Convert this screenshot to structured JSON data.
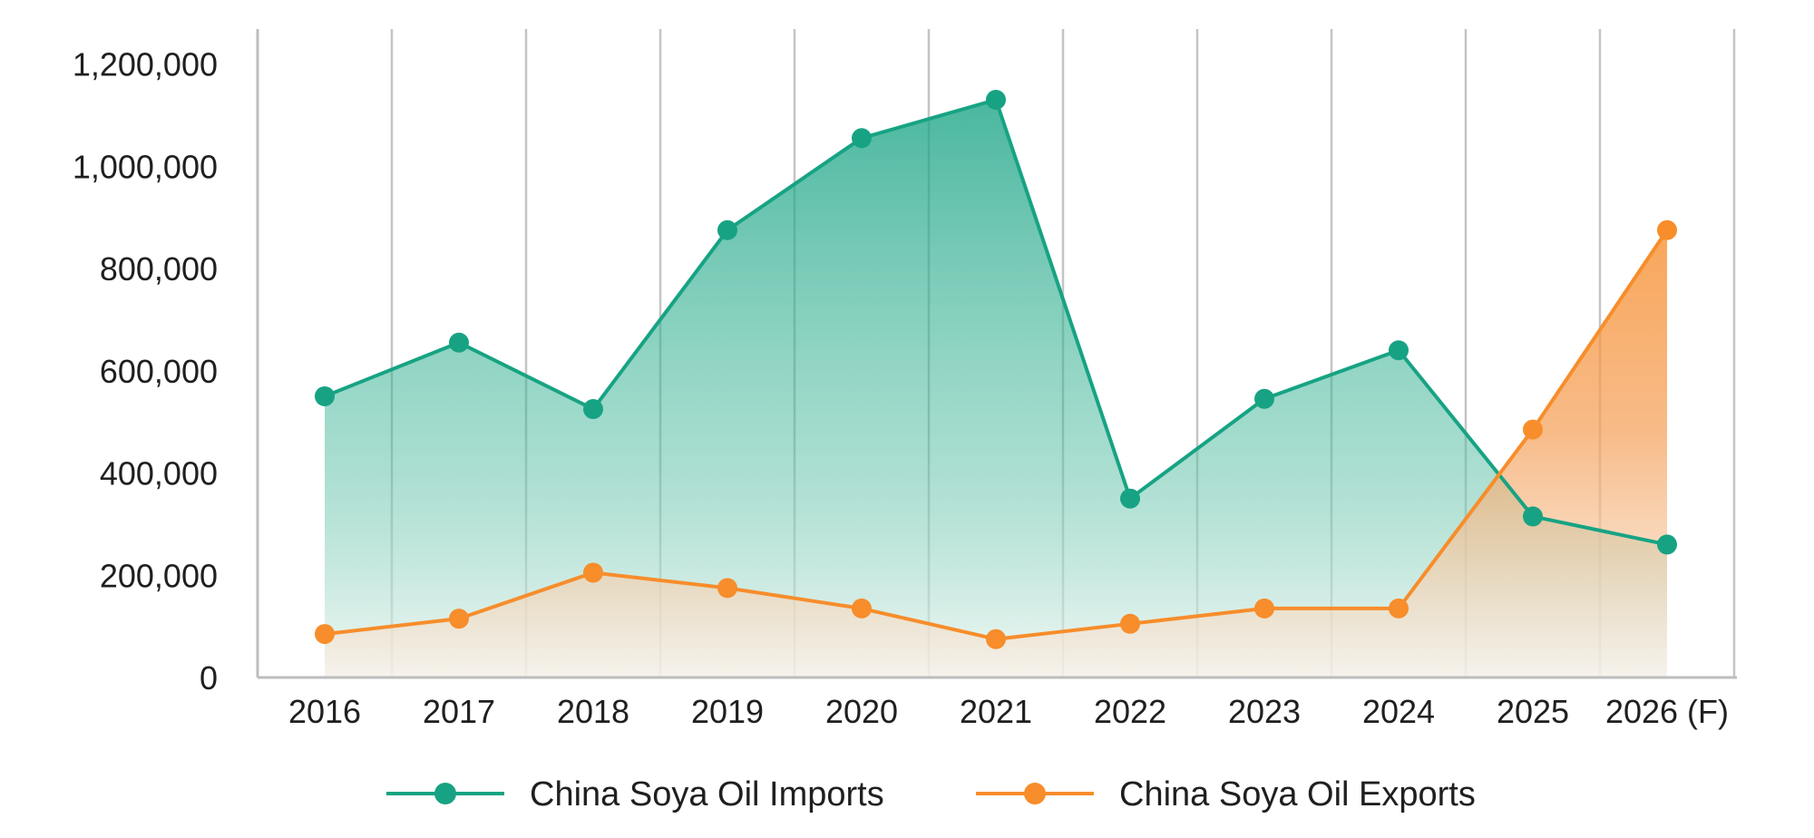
{
  "chart_data": {
    "type": "area",
    "categories": [
      "2016",
      "2017",
      "2018",
      "2019",
      "2020",
      "2021",
      "2022",
      "2023",
      "2024",
      "2025",
      "2026 (F)"
    ],
    "series": [
      {
        "name": "China Soya Oil Imports",
        "color": "#17a383",
        "values": [
          550000,
          655000,
          525000,
          875000,
          1055000,
          1130000,
          350000,
          545000,
          640000,
          315000,
          260000
        ]
      },
      {
        "name": "China Soya Oil Exports",
        "color": "#f78d2b",
        "values": [
          85000,
          115000,
          205000,
          175000,
          135000,
          75000,
          105000,
          135000,
          135000,
          485000,
          875000
        ]
      }
    ],
    "y_ticks": [
      "0",
      "200,000",
      "400,000",
      "600,000",
      "800,000",
      "1,000,000",
      "1,200,000"
    ],
    "ylim": [
      0,
      1240000
    ],
    "grid": "vertical",
    "legend_position": "bottom"
  }
}
